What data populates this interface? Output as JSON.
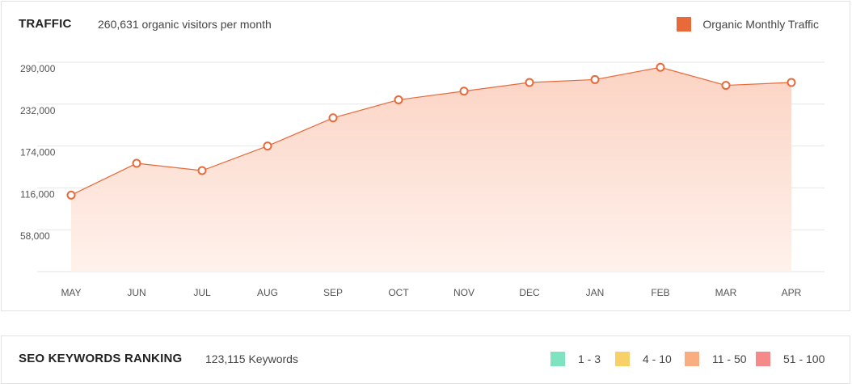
{
  "traffic": {
    "title": "TRAFFIC",
    "subtitle": "260,631 organic visitors per month",
    "legend_label": "Organic Monthly Traffic",
    "legend_color": "#e8693a"
  },
  "chart_data": {
    "type": "area",
    "title": "",
    "xlabel": "",
    "ylabel": "",
    "categories": [
      "MAY",
      "JUN",
      "JUL",
      "AUG",
      "SEP",
      "OCT",
      "NOV",
      "DEC",
      "JAN",
      "FEB",
      "MAR",
      "APR"
    ],
    "series": [
      {
        "name": "Organic Monthly Traffic",
        "values": [
          106000,
          150000,
          140000,
          174000,
          213000,
          238000,
          250000,
          262000,
          266000,
          283000,
          258000,
          262000
        ],
        "color": "#e8693a"
      }
    ],
    "yticks": [
      "58,000",
      "116,000",
      "174,000",
      "232,000",
      "290,000"
    ],
    "ylim": [
      0,
      290000
    ],
    "grid": true,
    "legend_position": "top-right"
  },
  "keywords": {
    "title": "SEO KEYWORDS RANKING",
    "subtitle": "123,115 Keywords",
    "legend": [
      {
        "label": "1 - 3",
        "color": "#7ee3bf"
      },
      {
        "label": "4 - 10",
        "color": "#f7d067"
      },
      {
        "label": "11 - 50",
        "color": "#f9ae82"
      },
      {
        "label": "51 - 100",
        "color": "#f48a8a"
      }
    ]
  }
}
